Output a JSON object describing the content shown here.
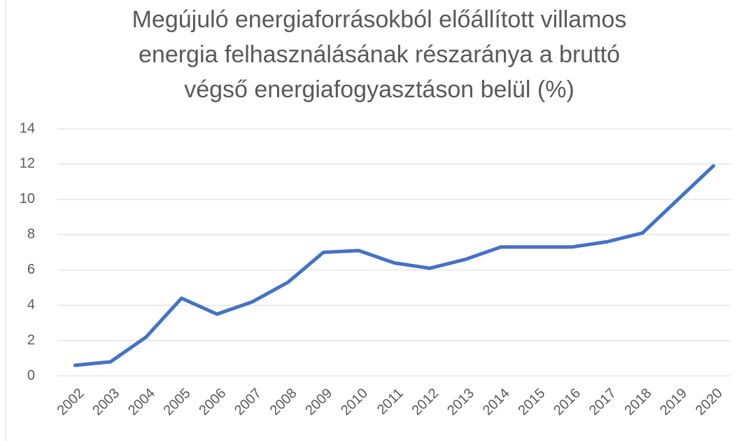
{
  "chart_data": {
    "type": "line",
    "title": [
      "Megújuló energiaforrásokból előállított villamos",
      "energia felhasználásának részaránya a bruttó",
      "végső energiafogyasztáson belül (%)"
    ],
    "categories": [
      "2002",
      "2003",
      "2004",
      "2005",
      "2006",
      "2007",
      "2008",
      "2009",
      "2010",
      "2011",
      "2012",
      "2013",
      "2014",
      "2015",
      "2016",
      "2017",
      "2018",
      "2019",
      "2020"
    ],
    "values": [
      0.6,
      0.8,
      2.2,
      4.4,
      3.5,
      4.2,
      5.3,
      7.0,
      7.1,
      6.4,
      6.1,
      6.6,
      7.3,
      7.3,
      7.3,
      7.6,
      8.1,
      10.0,
      11.9
    ],
    "color": "#4472c4",
    "ylim": [
      0,
      14
    ],
    "yticks": [
      0,
      2,
      4,
      6,
      8,
      10,
      12,
      14
    ],
    "grid": true
  }
}
